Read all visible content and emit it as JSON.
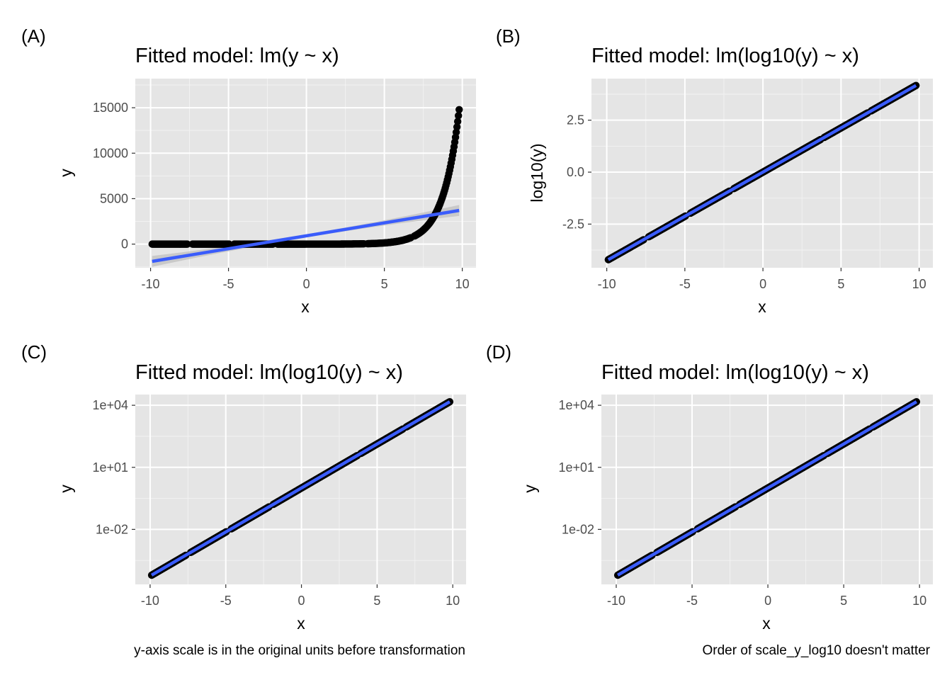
{
  "chart_data": [
    {
      "type": "scatter",
      "tag": "(A)",
      "title": "Fitted model: lm(y ~ x)",
      "xlabel": "x",
      "ylabel": "y",
      "xlim": [
        -10,
        10
      ],
      "ylim": [
        -2600,
        18200
      ],
      "y_scale": "linear",
      "x_ticks": [
        -10,
        -5,
        0,
        5,
        10
      ],
      "x_ticklabels": [
        "-10",
        "-5",
        "0",
        "5",
        "10"
      ],
      "y_ticks": [
        0,
        5000,
        10000,
        15000
      ],
      "y_ticklabels": [
        "0",
        "5000",
        "10000",
        "15000"
      ],
      "points": {
        "curve": "10^(0.4255*x)",
        "x_range": [
          -9.9,
          9.8
        ]
      },
      "fit": {
        "kind": "linear",
        "x": [
          -9.9,
          9.8
        ],
        "y": [
          -1900,
          3700
        ],
        "confidence_band": true
      },
      "grid": true,
      "caption": ""
    },
    {
      "type": "scatter",
      "tag": "(B)",
      "title": "Fitted model: lm(log10(y) ~ x)",
      "xlabel": "x",
      "ylabel": "log10(y)",
      "xlim": [
        -10,
        10
      ],
      "ylim": [
        -4.6,
        4.5
      ],
      "y_scale": "linear",
      "x_ticks": [
        -10,
        -5,
        0,
        5,
        10
      ],
      "x_ticklabels": [
        "-10",
        "-5",
        "0",
        "5",
        "10"
      ],
      "y_ticks": [
        -2.5,
        0,
        2.5
      ],
      "y_ticklabels": [
        "-2.5",
        "0.0",
        "2.5"
      ],
      "points": {
        "curve": "0.4255*x",
        "x_range": [
          -9.9,
          9.8
        ]
      },
      "fit": {
        "kind": "linear",
        "x": [
          -9.9,
          9.8
        ],
        "y": [
          -4.21,
          4.17
        ],
        "confidence_band": false
      },
      "grid": true,
      "caption": ""
    },
    {
      "type": "scatter",
      "tag": "(C)",
      "title": "Fitted model: lm(log10(y) ~ x)",
      "xlabel": "x",
      "ylabel": "y",
      "xlim": [
        -10,
        10
      ],
      "ylim": [
        2.2e-05,
        33000
      ],
      "y_scale": "log10",
      "x_ticks": [
        -10,
        -5,
        0,
        5,
        10
      ],
      "x_ticklabels": [
        "-10",
        "-5",
        "0",
        "5",
        "10"
      ],
      "y_ticks": [
        0.01,
        10,
        10000
      ],
      "y_ticklabels": [
        "1e-02",
        "1e+01",
        "1e+04"
      ],
      "points": {
        "curve": "10^(0.4255*x)",
        "x_range": [
          -9.9,
          9.8
        ]
      },
      "fit": {
        "kind": "linear-in-log10(y)",
        "x": [
          -9.9,
          9.8
        ],
        "log10_y": [
          -4.21,
          4.17
        ],
        "confidence_band": false
      },
      "grid": true,
      "caption": "y-axis scale is in the original units before transformation"
    },
    {
      "type": "scatter",
      "tag": "(D)",
      "title": "Fitted model: lm(log10(y) ~ x)",
      "xlabel": "x",
      "ylabel": "y",
      "xlim": [
        -10,
        10
      ],
      "ylim": [
        2.2e-05,
        33000
      ],
      "y_scale": "log10",
      "x_ticks": [
        -10,
        -5,
        0,
        5,
        10
      ],
      "x_ticklabels": [
        "-10",
        "-5",
        "0",
        "5",
        "10"
      ],
      "y_ticks": [
        0.01,
        10,
        10000
      ],
      "y_ticklabels": [
        "1e-02",
        "1e+01",
        "1e+04"
      ],
      "points": {
        "curve": "10^(0.4255*x)",
        "x_range": [
          -9.9,
          9.8
        ]
      },
      "fit": {
        "kind": "linear-in-log10(y)",
        "x": [
          -9.9,
          9.8
        ],
        "log10_y": [
          -4.21,
          4.17
        ],
        "confidence_band": false
      },
      "grid": true,
      "caption": "Order of scale_y_log10 doesn't matter"
    }
  ],
  "colors": {
    "panel_background": "#e5e5e5",
    "grid_major": "#ffffff",
    "grid_minor": "#f2f2f2",
    "points": "#000000",
    "fit_line": "#3a5cfb",
    "confidence_band": "#bfbfbf",
    "tick_label": "#4d4d4d",
    "tick_mark": "#333333"
  }
}
